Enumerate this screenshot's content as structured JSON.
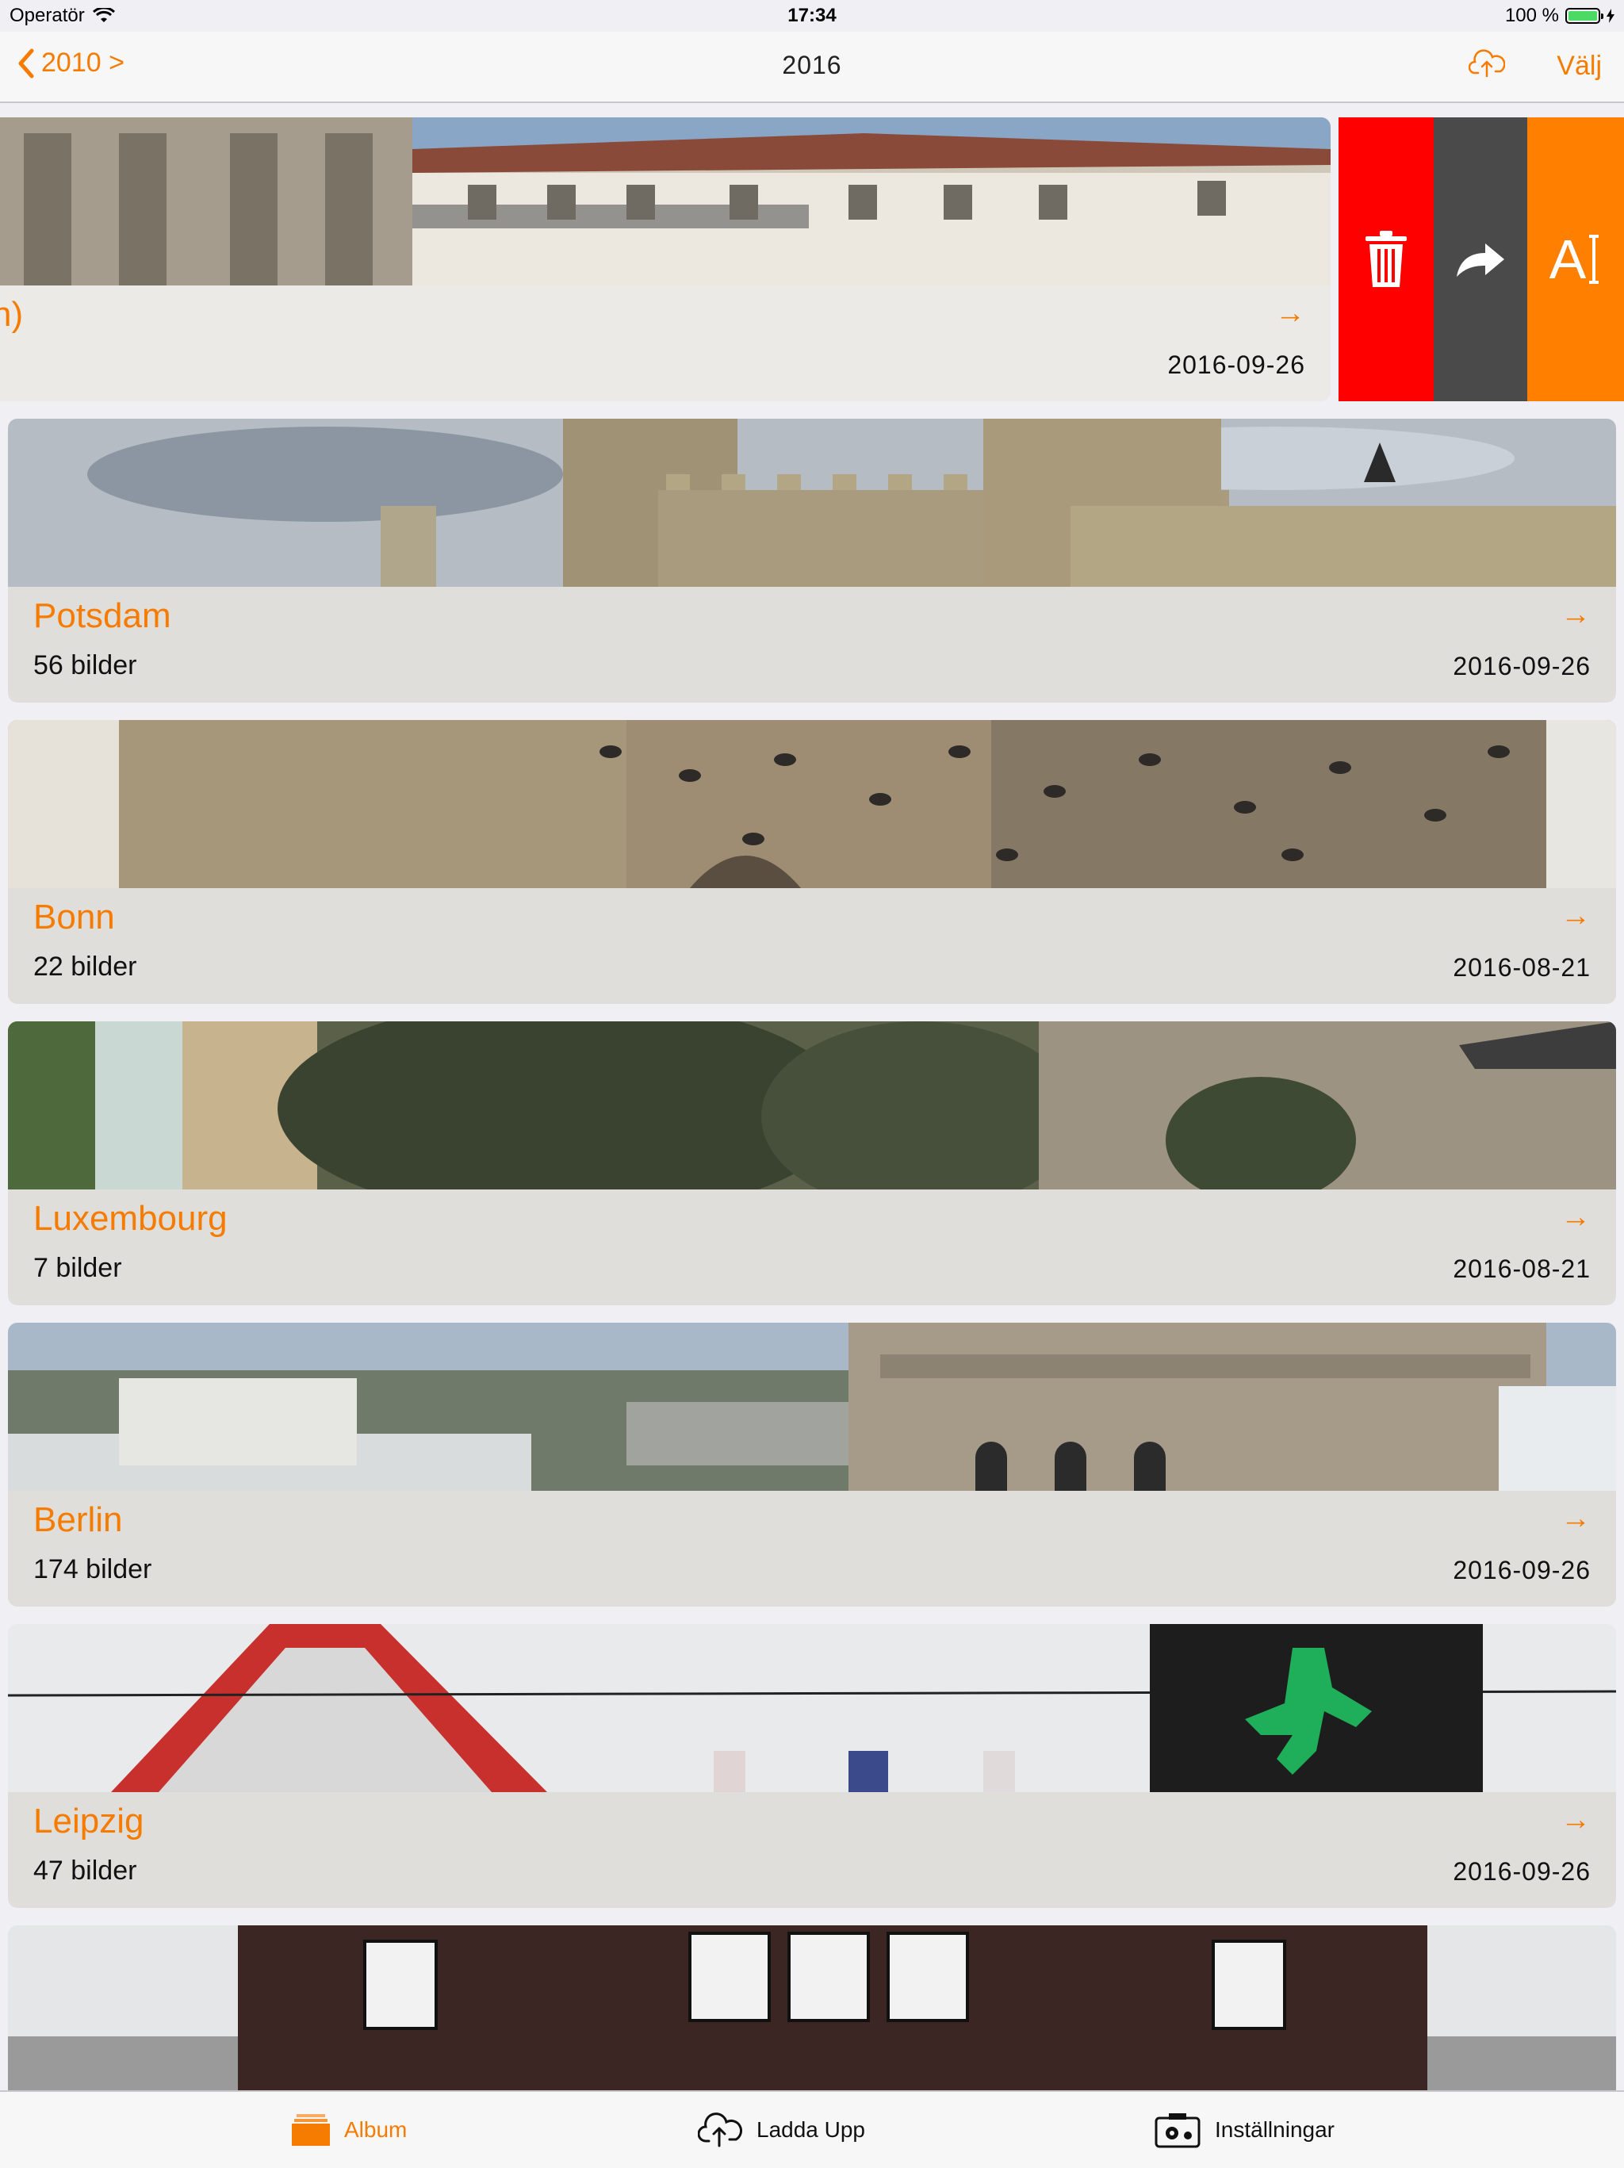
{
  "status": {
    "operator": "Operatör",
    "time": "17:34",
    "battery": "100 %"
  },
  "nav": {
    "back_label": "2010 >",
    "title": "2016",
    "select_label": "Välj"
  },
  "first_card": {
    "name_fragment": "n)",
    "date": "2016-09-26"
  },
  "albums": [
    {
      "name": "Potsdam",
      "count": "56 bilder",
      "date": "2016-09-26"
    },
    {
      "name": "Bonn",
      "count": "22 bilder",
      "date": "2016-08-21"
    },
    {
      "name": "Luxembourg",
      "count": "7 bilder",
      "date": "2016-08-21"
    },
    {
      "name": "Berlin",
      "count": "174 bilder",
      "date": "2016-09-26"
    },
    {
      "name": "Leipzig",
      "count": "47 bilder",
      "date": "2016-09-26"
    }
  ],
  "row_arrow": "→",
  "actions": {
    "rename_glyph": "A"
  },
  "tabs": {
    "album": "Album",
    "upload": "Ladda Upp",
    "settings": "Inställningar"
  },
  "colors": {
    "accent": "#f57c00",
    "delete": "#fe0000",
    "share": "#4a4a4a",
    "rename": "#ff7f00"
  }
}
